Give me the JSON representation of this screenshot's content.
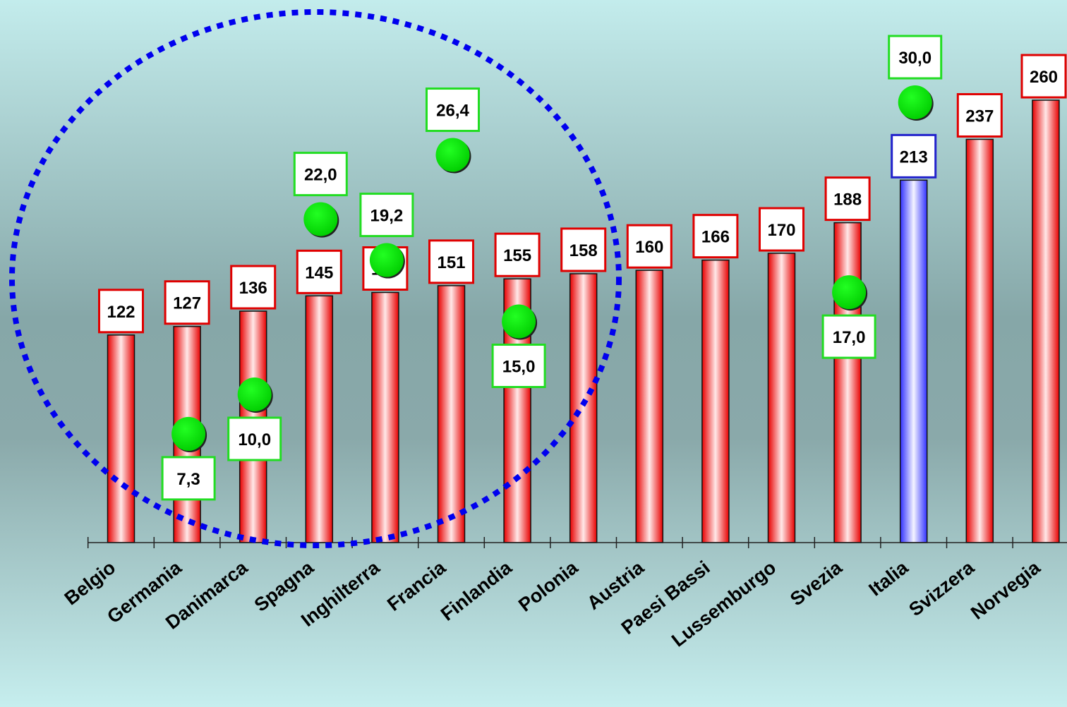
{
  "chart_data": {
    "type": "bar",
    "categories": [
      "Belgio",
      "Germania",
      "Danimarca",
      "Spagna",
      "Inghilterra",
      "Francia",
      "Finlandia",
      "Polonia",
      "Austria",
      "Paesi Bassi",
      "Lussemburgo",
      "Svezia",
      "Italia",
      "Svizzera",
      "Norvegia"
    ],
    "series": [
      {
        "values": [
          122,
          127,
          136,
          145,
          147,
          151,
          155,
          158,
          160,
          166,
          170,
          188,
          213,
          237,
          260
        ],
        "labels": [
          "122",
          "127",
          "136",
          "145",
          "147",
          "151",
          "155",
          "158",
          "160",
          "166",
          "170",
          "188",
          "213",
          "237",
          "260"
        ],
        "colors": [
          "#ff2020",
          "#ff2020",
          "#ff2020",
          "#ff2020",
          "#ff2020",
          "#ff2020",
          "#ff2020",
          "#ff2020",
          "#ff2020",
          "#ff2020",
          "#ff2020",
          "#ff2020",
          "#3333ff",
          "#ff2020",
          "#ff2020"
        ]
      },
      {
        "type": "scatter",
        "points": [
          {
            "category": "Germania",
            "value": 7.3,
            "label": "7,3"
          },
          {
            "category": "Danimarca",
            "value": 10.0,
            "label": "10,0"
          },
          {
            "category": "Spagna",
            "value": 22.0,
            "label": "22,0"
          },
          {
            "category": "Inghilterra",
            "value": 19.2,
            "label": "19,2"
          },
          {
            "category": "Francia",
            "value": 26.4,
            "label": "26,4"
          },
          {
            "category": "Finlandia",
            "value": 15.0,
            "label": "15,0"
          },
          {
            "category": "Svezia",
            "value": 17.0,
            "label": "17,0"
          },
          {
            "category": "Italia",
            "value": 30.0,
            "label": "30,0"
          }
        ],
        "color": "#00e000"
      }
    ],
    "ylim": [
      0,
      280
    ],
    "y2lim": [
      0,
      35
    ],
    "highlight": {
      "category": "Italia",
      "color": "#3333ff"
    },
    "annotation": {
      "shape": "dotted-ellipse",
      "color": "#0000ee",
      "covers": [
        "Belgio",
        "Germania",
        "Danimarca",
        "Spagna",
        "Inghilterra",
        "Francia",
        "Finlandia",
        "Polonia"
      ]
    },
    "title": "",
    "xlabel": "",
    "ylabel": "",
    "grid": false,
    "legend": "none"
  }
}
